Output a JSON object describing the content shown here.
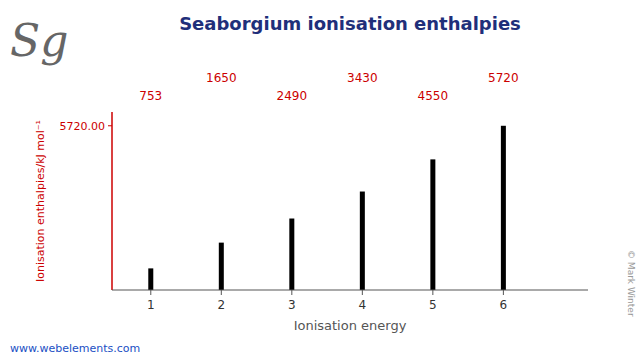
{
  "chart_data": {
    "type": "bar",
    "title": "Seaborgium ionisation enthalpies",
    "x_label": "Ionisation energy",
    "y_label": "Ionisation enthalpies/kJ mol⁻¹",
    "x": [
      1,
      2,
      3,
      4,
      5,
      6
    ],
    "values": [
      753,
      1650,
      2490,
      3430,
      4550,
      5720
    ],
    "color": "#000000",
    "xlim": [
      0.45,
      7.2
    ],
    "xticks": [
      1,
      2,
      3,
      4,
      5,
      6
    ],
    "ylim": [
      0,
      6200
    ],
    "yticks": [
      {
        "value": 5720,
        "label": "5720.00"
      }
    ],
    "grid": false,
    "data_labels": true,
    "annotations": [
      "Sg",
      "www.webelements.com",
      "© Mark Winter"
    ]
  }
}
